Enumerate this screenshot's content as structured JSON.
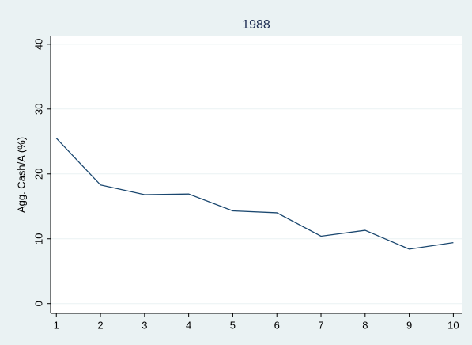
{
  "chart_data": {
    "type": "line",
    "title": "1988",
    "y_label": "Agg. Cash/A (%)",
    "x": [
      1,
      2,
      3,
      4,
      5,
      6,
      7,
      8,
      9,
      10
    ],
    "series": [
      {
        "name": "Agg. Cash/A (%)",
        "color": "#1a476f",
        "values": [
          25.5,
          18.3,
          16.8,
          16.9,
          14.3,
          14.0,
          10.4,
          11.3,
          8.4,
          9.4
        ]
      }
    ],
    "xlim": [
      0.87,
      10.19
    ],
    "xticks": [
      1,
      2,
      3,
      4,
      5,
      6,
      7,
      8,
      9,
      10
    ],
    "ylim": [
      -1.5,
      41.2
    ],
    "yticks": [
      0,
      10,
      20,
      30,
      40
    ],
    "grid": true
  }
}
